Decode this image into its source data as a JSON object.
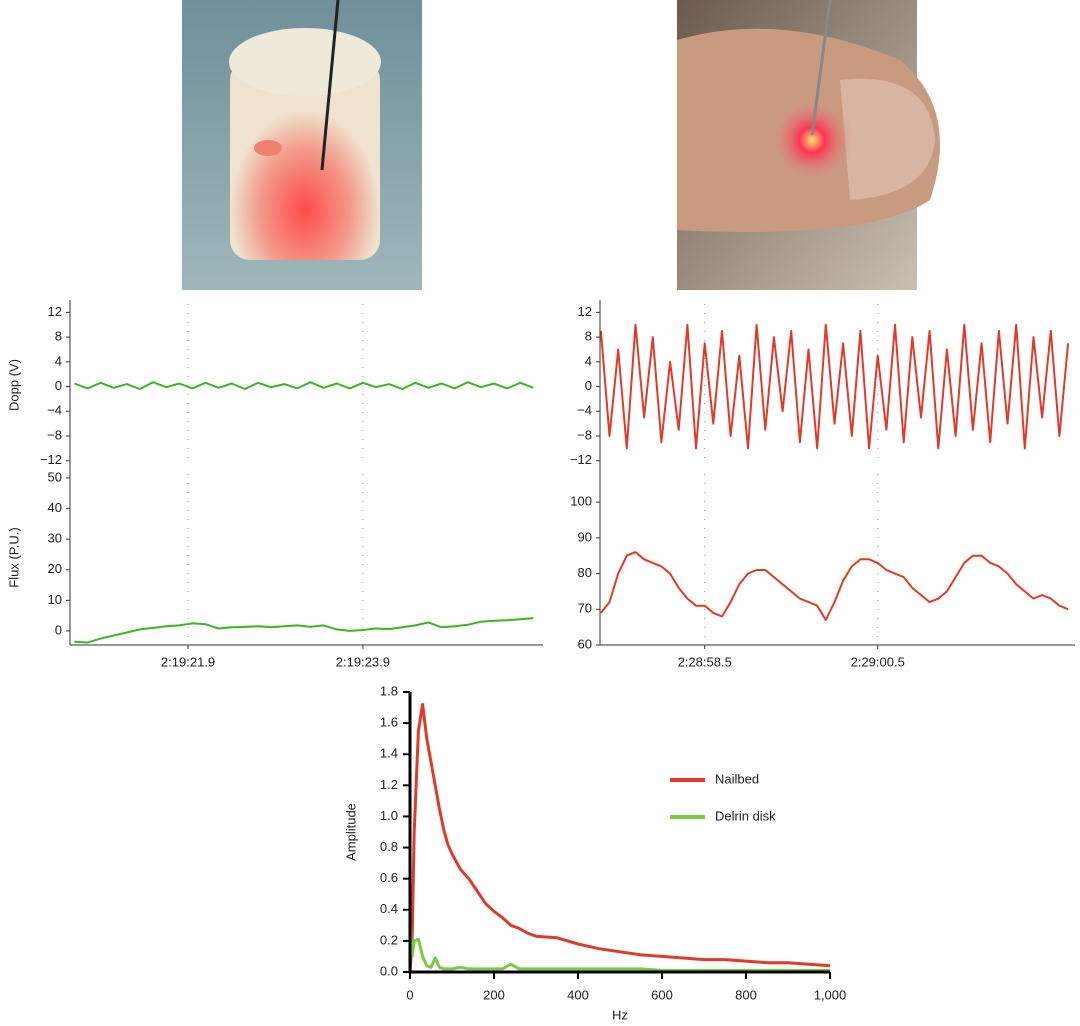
{
  "chart_data": [
    {
      "type": "line",
      "grid": true,
      "x": [
        8360.6,
        8360.75,
        8360.9,
        8361.05,
        8361.2,
        8361.35,
        8361.5,
        8361.65,
        8361.8,
        8361.95,
        8362.1,
        8362.25,
        8362.4,
        8362.55,
        8362.7,
        8362.85,
        8363,
        8363.15,
        8363.3,
        8363.45,
        8363.6,
        8363.75,
        8363.9,
        8364.05,
        8364.2,
        8364.35,
        8364.5,
        8364.65,
        8364.8,
        8364.95,
        8365.1,
        8365.25,
        8365.4,
        8365.55,
        8365.7,
        8365.85
      ],
      "xlim": [
        8360.55,
        8365.96
      ],
      "xticks": [
        {
          "value": 8361.9,
          "label": "2:19:21.9"
        },
        {
          "value": 8363.9,
          "label": "2:19:23.9"
        }
      ],
      "panels": [
        {
          "ylabel": "Dopp (V)",
          "ylim": [
            -13.5,
            14
          ],
          "yticks": [
            12,
            8,
            4,
            0,
            {
              "value": -4,
              "label": "−4"
            },
            {
              "value": -8,
              "label": "−8"
            },
            {
              "value": -12,
              "label": "−12"
            }
          ],
          "series": [
            {
              "color": "#3cb521",
              "values": [
                0.5,
                -0.3,
                0.6,
                -0.2,
                0.4,
                -0.4,
                0.7,
                -0.1,
                0.5,
                -0.3,
                0.6,
                -0.2,
                0.5,
                -0.4,
                0.6,
                -0.1,
                0.4,
                -0.3,
                0.7,
                -0.2,
                0.5,
                -0.3,
                0.6,
                -0.1,
                0.4,
                -0.4,
                0.6,
                -0.2,
                0.5,
                -0.3,
                0.7,
                -0.1,
                0.5,
                -0.3,
                0.6,
                -0.2
              ]
            }
          ]
        },
        {
          "ylabel": "Flux (P.U.)",
          "ylim": [
            -4.6,
            52.6
          ],
          "yticks": [
            0,
            10,
            20,
            30,
            40,
            50
          ],
          "series": [
            {
              "color": "#3cb521",
              "values": [
                -3.5,
                -3.8,
                -2.5,
                -1.5,
                -0.5,
                0.5,
                1,
                1.5,
                1.8,
                2.5,
                2.2,
                0.8,
                1.2,
                1.3,
                1.5,
                1.2,
                1.5,
                1.8,
                1.3,
                1.8,
                0.5,
                0,
                0.3,
                0.8,
                0.6,
                1.2,
                1.8,
                2.8,
                1.2,
                1.5,
                2,
                3,
                3.3,
                3.5,
                3.8,
                4.2
              ]
            }
          ]
        }
      ]
    },
    {
      "type": "line",
      "grid": true,
      "x": [
        8937.3,
        8937.4,
        8937.5,
        8937.6,
        8937.7,
        8937.8,
        8937.9,
        8938,
        8938.1,
        8938.2,
        8938.3,
        8938.4,
        8938.5,
        8938.6,
        8938.7,
        8938.8,
        8938.9,
        8939,
        8939.1,
        8939.2,
        8939.3,
        8939.4,
        8939.5,
        8939.6,
        8939.7,
        8939.8,
        8939.9,
        8940,
        8940.1,
        8940.2,
        8940.3,
        8940.4,
        8940.5,
        8940.6,
        8940.7,
        8940.8,
        8940.9,
        8941,
        8941.1,
        8941.2,
        8941.3,
        8941.4,
        8941.5,
        8941.6,
        8941.7,
        8941.8,
        8941.9,
        8942,
        8942.1,
        8942.2,
        8942.3,
        8942.4,
        8942.5,
        8942.6,
        8942.7
      ],
      "xlim": [
        8937.29,
        8942.78
      ],
      "xticks": [
        {
          "value": 8938.5,
          "label": "2:28:58.5"
        },
        {
          "value": 8940.5,
          "label": "2:29:00.5"
        }
      ],
      "panels": [
        {
          "ylim": [
            -13.5,
            14
          ],
          "yticks": [
            12,
            8,
            4,
            0,
            {
              "value": -4,
              "label": "−4"
            },
            {
              "value": -8,
              "label": "−8"
            },
            {
              "value": -12,
              "label": "−12"
            }
          ],
          "series": [
            {
              "color": "#e03a2a",
              "values": [
                9,
                -8,
                6,
                -10,
                10,
                -5,
                8,
                -9,
                4,
                -7,
                10,
                -10,
                7,
                -6,
                9,
                -8,
                5,
                -10,
                10,
                -7,
                8,
                -4,
                9,
                -9,
                6,
                -10,
                10,
                -6,
                7,
                -8,
                9,
                -10,
                5,
                -7,
                10,
                -9,
                8,
                -5,
                9,
                -10,
                6,
                -8,
                10,
                -7,
                7,
                -9,
                9,
                -6,
                10,
                -10,
                8,
                -5,
                9,
                -8,
                7
              ]
            }
          ]
        },
        {
          "ylim": [
            60,
            109
          ],
          "yticks": [
            60,
            70,
            80,
            90,
            100
          ],
          "series": [
            {
              "color": "#e03a2a",
              "values": [
                69,
                72,
                80,
                85,
                86,
                84,
                83,
                82,
                80,
                76,
                73,
                71,
                71,
                69,
                68,
                72,
                77,
                80,
                81,
                81,
                79,
                77,
                75,
                73,
                72,
                71,
                67,
                72,
                78,
                82,
                84,
                84,
                83,
                81,
                80,
                79,
                76,
                74,
                72,
                73,
                75,
                79,
                83,
                85,
                85,
                83,
                82,
                80,
                77,
                75,
                73,
                74,
                73,
                71,
                70
              ]
            }
          ]
        }
      ]
    },
    {
      "type": "line",
      "xlabel": "Hz",
      "ylabel": "Amplitude",
      "legend": "center right",
      "x": [
        0,
        5,
        10,
        20,
        30,
        40,
        50,
        60,
        70,
        80,
        90,
        100,
        120,
        140,
        160,
        180,
        200,
        220,
        240,
        260,
        280,
        300,
        350,
        400,
        450,
        500,
        550,
        600,
        650,
        700,
        750,
        800,
        850,
        900,
        950,
        1000
      ],
      "xlim": [
        0,
        1000
      ],
      "xticks": [
        0,
        200,
        400,
        600,
        800,
        {
          "value": 1000,
          "label": "1,000"
        }
      ],
      "ylim": [
        0,
        1.8
      ],
      "yticks": [
        {
          "value": 0,
          "label": "0.0"
        },
        0.2,
        0.4,
        0.6,
        0.8,
        {
          "value": 1,
          "label": "1.0"
        },
        1.2,
        1.4,
        1.6,
        1.8
      ],
      "series": [
        {
          "name": "Nailbed",
          "color": "#e03a2a",
          "values": [
            0,
            0.2,
            0.9,
            1.55,
            1.72,
            1.5,
            1.35,
            1.2,
            1.05,
            0.92,
            0.82,
            0.76,
            0.66,
            0.6,
            0.52,
            0.44,
            0.39,
            0.35,
            0.3,
            0.28,
            0.25,
            0.23,
            0.22,
            0.18,
            0.15,
            0.13,
            0.11,
            0.1,
            0.09,
            0.08,
            0.08,
            0.07,
            0.06,
            0.06,
            0.05,
            0.04
          ]
        },
        {
          "name": "Delrin disk",
          "color": "#7ac943",
          "values": [
            0.3,
            0.1,
            0.2,
            0.21,
            0.1,
            0.04,
            0.03,
            0.09,
            0.03,
            0.02,
            0.02,
            0.02,
            0.03,
            0.02,
            0.02,
            0.02,
            0.02,
            0.02,
            0.05,
            0.02,
            0.02,
            0.02,
            0.02,
            0.02,
            0.02,
            0.02,
            0.02,
            0.01,
            0.01,
            0.01,
            0.01,
            0.01,
            0.01,
            0.01,
            0.01,
            0.01
          ]
        }
      ]
    }
  ]
}
